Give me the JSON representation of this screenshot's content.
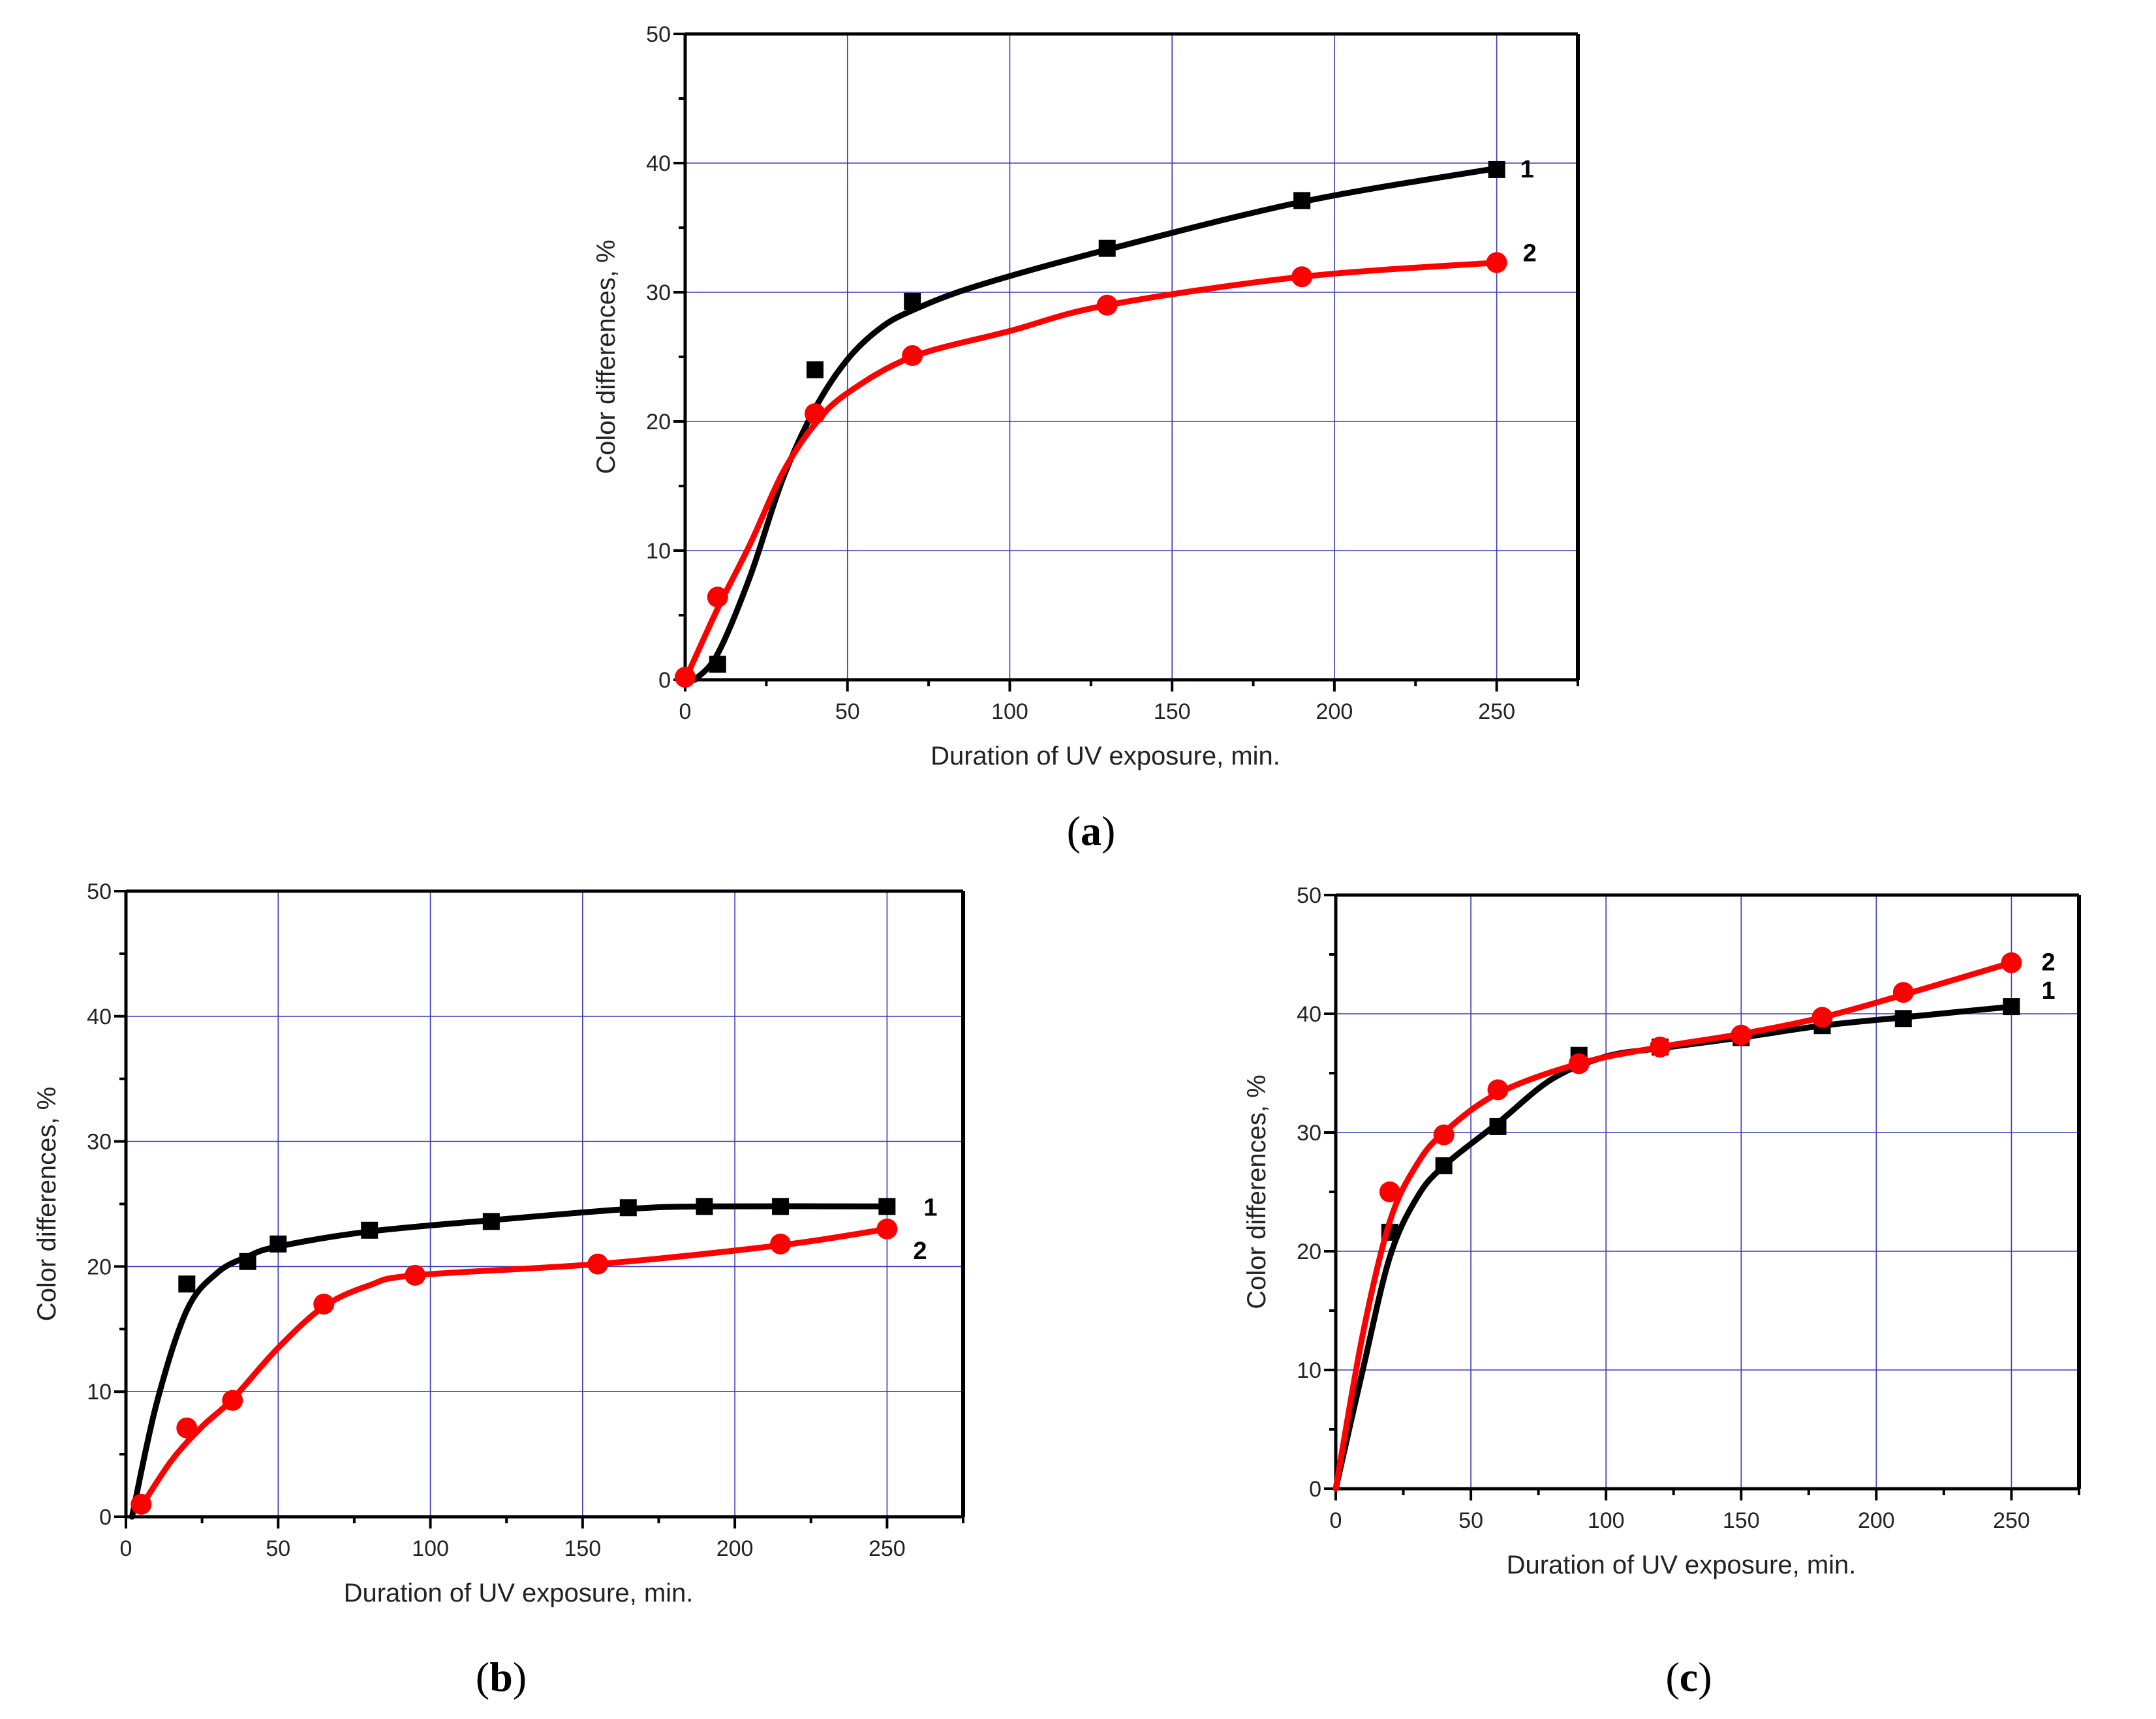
{
  "figure": {
    "panels": [
      "a",
      "b",
      "c"
    ]
  },
  "chart_data": [
    {
      "id": "a",
      "type": "line",
      "panel_label": "a",
      "xlabel": "Duration of UV exposure, min.",
      "ylabel": "Color differences, %",
      "xlim": [
        0,
        275
      ],
      "ylim": [
        0,
        50
      ],
      "xticks": [
        0,
        50,
        100,
        150,
        200,
        250
      ],
      "yticks": [
        0,
        10,
        20,
        30,
        40,
        50
      ],
      "grid": true,
      "series": [
        {
          "name": "1",
          "color": "#000000",
          "marker": "square",
          "points": [
            [
              10,
              1.2
            ],
            [
              40,
              24
            ],
            [
              70,
              29.3
            ],
            [
              130,
              33.4
            ],
            [
              190,
              37.1
            ],
            [
              250,
              39.5
            ]
          ],
          "fit": [
            [
              3,
              0
            ],
            [
              10,
              2
            ],
            [
              20,
              8
            ],
            [
              30,
              15.5
            ],
            [
              40,
              21
            ],
            [
              50,
              24.8
            ],
            [
              60,
              27.2
            ],
            [
              70,
              28.6
            ],
            [
              90,
              30.5
            ],
            [
              130,
              33.3
            ],
            [
              190,
              37
            ],
            [
              250,
              39.6
            ]
          ]
        },
        {
          "name": "2",
          "color": "#ff0000",
          "marker": "circle",
          "points": [
            [
              0,
              0.2
            ],
            [
              10,
              6.4
            ],
            [
              40,
              20.6
            ],
            [
              70,
              25.1
            ],
            [
              130,
              29
            ],
            [
              190,
              31.2
            ],
            [
              250,
              32.3
            ]
          ],
          "fit": [
            [
              0,
              0
            ],
            [
              10,
              5.5
            ],
            [
              20,
              10.5
            ],
            [
              30,
              16
            ],
            [
              40,
              19.8
            ],
            [
              50,
              22.2
            ],
            [
              70,
              25
            ],
            [
              100,
              27
            ],
            [
              130,
              29
            ],
            [
              190,
              31.2
            ],
            [
              250,
              32.3
            ]
          ]
        }
      ]
    },
    {
      "id": "b",
      "type": "line",
      "panel_label": "b",
      "xlabel": "Duration of UV exposure, min.",
      "ylabel": "Color differences, %",
      "xlim": [
        0,
        275
      ],
      "ylim": [
        0,
        50
      ],
      "xticks": [
        0,
        50,
        100,
        150,
        200,
        250
      ],
      "yticks": [
        0,
        10,
        20,
        30,
        40,
        50
      ],
      "grid": true,
      "series": [
        {
          "name": "1",
          "color": "#000000",
          "marker": "square",
          "points": [
            [
              20,
              18.6
            ],
            [
              40,
              20.4
            ],
            [
              50,
              21.8
            ],
            [
              80,
              22.9
            ],
            [
              120,
              23.6
            ],
            [
              165,
              24.7
            ],
            [
              190,
              24.8
            ],
            [
              215,
              24.8
            ],
            [
              250,
              24.8
            ]
          ],
          "fit": [
            [
              2,
              0
            ],
            [
              10,
              9
            ],
            [
              20,
              16.5
            ],
            [
              30,
              19.5
            ],
            [
              40,
              20.8
            ],
            [
              50,
              21.6
            ],
            [
              80,
              22.8
            ],
            [
              120,
              23.7
            ],
            [
              165,
              24.6
            ],
            [
              190,
              24.8
            ],
            [
              250,
              24.8
            ]
          ]
        },
        {
          "name": "2",
          "color": "#ff0000",
          "marker": "circle",
          "points": [
            [
              5,
              1
            ],
            [
              20,
              7.1
            ],
            [
              35,
              9.3
            ],
            [
              65,
              17
            ],
            [
              95,
              19.3
            ],
            [
              155,
              20.2
            ],
            [
              215,
              21.8
            ],
            [
              250,
              23
            ]
          ],
          "fit": [
            [
              5,
              0.8
            ],
            [
              15,
              4.5
            ],
            [
              25,
              7.2
            ],
            [
              35,
              9.4
            ],
            [
              50,
              13.5
            ],
            [
              65,
              16.8
            ],
            [
              80,
              18.5
            ],
            [
              95,
              19.3
            ],
            [
              155,
              20.2
            ],
            [
              215,
              21.7
            ],
            [
              250,
              23
            ]
          ]
        }
      ]
    },
    {
      "id": "c",
      "type": "line",
      "panel_label": "c",
      "xlabel": "Duration of UV exposure, min.",
      "ylabel": "Color differences, %",
      "xlim": [
        0,
        275
      ],
      "ylim": [
        0,
        50
      ],
      "xticks": [
        0,
        50,
        100,
        150,
        200,
        250
      ],
      "yticks": [
        0,
        10,
        20,
        30,
        40,
        50
      ],
      "grid": true,
      "series": [
        {
          "name": "1",
          "color": "#000000",
          "marker": "square",
          "points": [
            [
              20,
              21.6
            ],
            [
              40,
              27.2
            ],
            [
              60,
              30.5
            ],
            [
              90,
              36.5
            ],
            [
              120,
              37.2
            ],
            [
              150,
              38
            ],
            [
              180,
              39
            ],
            [
              210,
              39.6
            ],
            [
              250,
              40.6
            ]
          ],
          "fit": [
            [
              0,
              0
            ],
            [
              10,
              10
            ],
            [
              20,
              19.5
            ],
            [
              30,
              24.5
            ],
            [
              40,
              27.2
            ],
            [
              60,
              30.8
            ],
            [
              80,
              34.5
            ],
            [
              100,
              36.4
            ],
            [
              120,
              37.1
            ],
            [
              150,
              38
            ],
            [
              180,
              39
            ],
            [
              210,
              39.7
            ],
            [
              250,
              40.6
            ]
          ]
        },
        {
          "name": "2",
          "color": "#ff0000",
          "marker": "circle",
          "points": [
            [
              20,
              25
            ],
            [
              40,
              29.8
            ],
            [
              60,
              33.6
            ],
            [
              90,
              35.8
            ],
            [
              120,
              37.2
            ],
            [
              150,
              38.2
            ],
            [
              180,
              39.7
            ],
            [
              210,
              41.8
            ],
            [
              250,
              44.3
            ]
          ],
          "fit": [
            [
              0,
              0
            ],
            [
              10,
              13
            ],
            [
              20,
              22.5
            ],
            [
              30,
              27.3
            ],
            [
              40,
              30
            ],
            [
              60,
              33.3
            ],
            [
              90,
              35.8
            ],
            [
              120,
              37.2
            ],
            [
              150,
              38.3
            ],
            [
              180,
              39.7
            ],
            [
              210,
              41.6
            ],
            [
              250,
              44.3
            ]
          ]
        }
      ]
    }
  ]
}
